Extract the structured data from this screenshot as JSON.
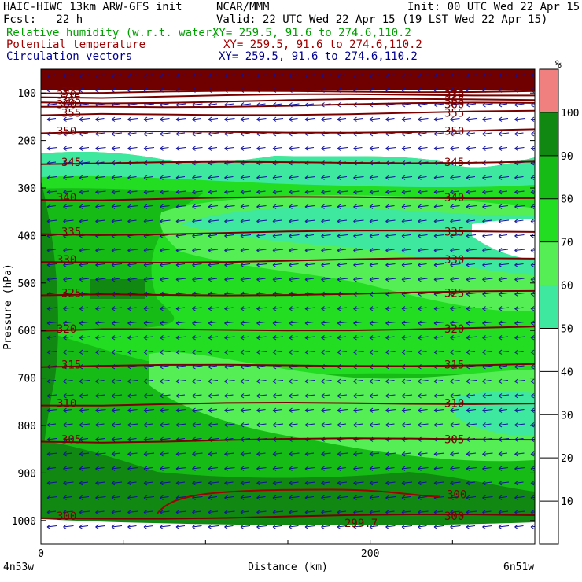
{
  "header": {
    "model": "HAIC-HIWC 13km ARW-GFS init",
    "org": "NCAR/MMM",
    "init": "Init: 00 UTC Wed 22 Apr 15",
    "fcst": "Fcst:   22 h",
    "valid": "Valid: 22 UTC Wed 22 Apr 15 (19 LST Wed 22 Apr 15)",
    "fields": [
      {
        "name": "Relative humidity (w.r.t. water)",
        "xy": "XY= 259.5, 91.6 to 274.6,110.2",
        "color": "#00a000"
      },
      {
        "name": "Potential temperature",
        "xy": "XY= 259.5, 91.6 to 274.6,110.2",
        "color": "#a00000"
      },
      {
        "name": "Circulation vectors",
        "xy": "XY= 259.5, 91.6 to 274.6,110.2",
        "color": "#000090"
      }
    ]
  },
  "chart_data": {
    "type": "heatmap",
    "title": "",
    "xlabel": "Distance (km)",
    "ylabel": "Pressure (hPa)",
    "xlim": [
      0,
      300
    ],
    "ylim": [
      1050,
      50
    ],
    "x_ticks": [
      0,
      200
    ],
    "y_ticks": [
      100,
      200,
      300,
      400,
      500,
      600,
      700,
      800,
      900,
      1000
    ],
    "x_end_labels": [
      "4n53w",
      "6n51w"
    ],
    "colorbar": {
      "unit": "%",
      "ticks": [
        10,
        20,
        30,
        40,
        50,
        60,
        70,
        80,
        90,
        100
      ],
      "levels": [
        {
          "from": 0,
          "to": 50,
          "color": "#ffffff"
        },
        {
          "from": 50,
          "to": 60,
          "color": "#3ee89e"
        },
        {
          "from": 60,
          "to": 70,
          "color": "#55ee55"
        },
        {
          "from": 70,
          "to": 80,
          "color": "#22dd22"
        },
        {
          "from": 80,
          "to": 90,
          "color": "#16bb16"
        },
        {
          "from": 90,
          "to": 100,
          "color": "#118811"
        },
        {
          "from": 100,
          "to": 110,
          "color": "#f08080"
        }
      ]
    },
    "theta_contours": [
      {
        "label": "300",
        "p": 990
      },
      {
        "label": "305",
        "p": 829
      },
      {
        "label": "310",
        "p": 753
      },
      {
        "label": "315",
        "p": 672
      },
      {
        "label": "320",
        "p": 596
      },
      {
        "label": "325",
        "p": 521
      },
      {
        "label": "330",
        "p": 451
      },
      {
        "label": "335",
        "p": 392
      },
      {
        "label": "340",
        "p": 320
      },
      {
        "label": "345",
        "p": 245
      },
      {
        "label": "350",
        "p": 180
      },
      {
        "label": "355",
        "p": 142
      },
      {
        "label": "360",
        "p": 124
      },
      {
        "label": "365",
        "p": 115
      },
      {
        "label": "370",
        "p": 104
      },
      {
        "label": "375",
        "p": 96
      }
    ],
    "other_labels": [
      "300",
      "299.7"
    ]
  }
}
